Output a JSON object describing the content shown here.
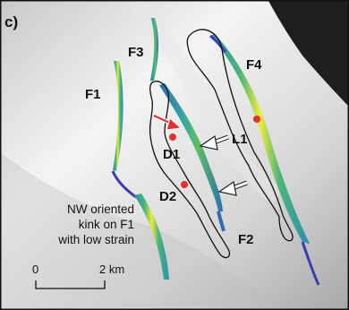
{
  "panel_label": "c)",
  "features": {
    "F1": "F1",
    "F2": "F2",
    "F3": "F3",
    "F4": "F4",
    "D1": "D1",
    "D2": "D2",
    "L1": "L1"
  },
  "annotation": {
    "line1": "NW oriented",
    "line2": "kink on F1",
    "line3": "with low strain"
  },
  "scale_bar": {
    "start_label": "0",
    "end_label": "2 km"
  },
  "colors": {
    "strain_high": "#f2ee3a",
    "strain_mid": "#5cc06a",
    "strain_low": "#2fa4b4",
    "strain_min": "#3b3fb0",
    "marker": "#e03030",
    "arrow_red": "#e03030",
    "arrow_white": "#ffffff"
  }
}
